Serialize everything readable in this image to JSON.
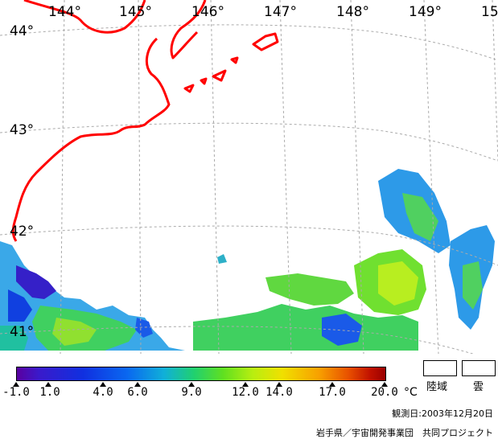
{
  "map": {
    "lon_labels": [
      "144°",
      "145°",
      "146°",
      "147°",
      "148°",
      "149°",
      "15"
    ],
    "lat_labels": [
      "44°",
      "43°",
      "42°",
      "41°"
    ],
    "coast_color": "#ff0000",
    "grid_color": "#aaaaaa"
  },
  "legend": {
    "ticks": [
      "-1.0",
      "1.0",
      "4.0",
      "6.0",
      "9.0",
      "12.0",
      "14.0",
      "17.0",
      "20.0"
    ],
    "unit": "°C",
    "land_label": "陸域",
    "cloud_label": "雲",
    "observation_date": "観測日:2003年12月20日",
    "credit": "岩手県／宇宙開発事業団　共同プロジェクト"
  }
}
